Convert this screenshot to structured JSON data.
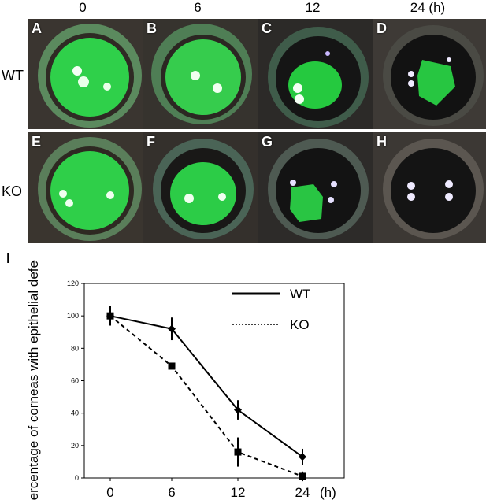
{
  "columns": [
    "0",
    "6",
    "12",
    "24 (h)"
  ],
  "rows": [
    "WT",
    "KO"
  ],
  "panels": {
    "wt": [
      "A",
      "B",
      "C",
      "D"
    ],
    "ko": [
      "E",
      "F",
      "G",
      "H"
    ]
  },
  "panel_i_label": "I",
  "stain_color": "#1fc43a",
  "chart_data": {
    "type": "line",
    "ylabel": "Percentage of corneas with epithelial defects",
    "x": [
      "0",
      "6",
      "12",
      "24"
    ],
    "x_unit": "(h)",
    "ylim": [
      0,
      120
    ],
    "yticks": [
      "0",
      "20",
      "40",
      "60",
      "80",
      "100",
      "120"
    ],
    "legend_position": "top-right",
    "series": [
      {
        "name": "WT",
        "values": [
          100,
          92,
          42,
          13
        ],
        "errors": [
          6,
          7,
          6,
          5
        ],
        "marker": "diamond",
        "line": "solid"
      },
      {
        "name": "KO",
        "values": [
          100,
          69,
          16,
          1
        ],
        "errors": [
          0,
          0,
          9,
          3
        ],
        "marker": "square",
        "line": "dashed"
      }
    ]
  }
}
